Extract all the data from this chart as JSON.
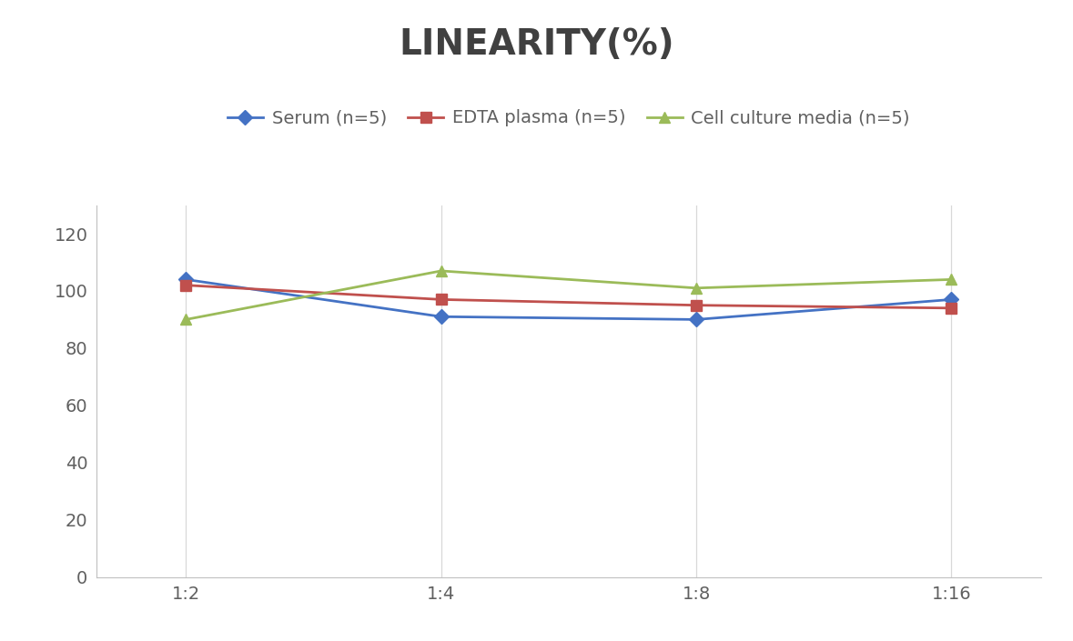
{
  "title": "LINEARITY(%)",
  "x_labels": [
    "1:2",
    "1:4",
    "1:8",
    "1:16"
  ],
  "series": [
    {
      "label": "Serum (n=5)",
      "values": [
        104,
        91,
        90,
        97
      ],
      "color": "#4472C4",
      "marker": "D",
      "linewidth": 2,
      "markersize": 8
    },
    {
      "label": "EDTA plasma (n=5)",
      "values": [
        102,
        97,
        95,
        94
      ],
      "color": "#C0504D",
      "marker": "s",
      "linewidth": 2,
      "markersize": 8
    },
    {
      "label": "Cell culture media (n=5)",
      "values": [
        90,
        107,
        101,
        104
      ],
      "color": "#9BBB59",
      "marker": "^",
      "linewidth": 2,
      "markersize": 9
    }
  ],
  "ylim": [
    0,
    130
  ],
  "yticks": [
    0,
    20,
    40,
    60,
    80,
    100,
    120
  ],
  "title_fontsize": 28,
  "title_fontweight": "bold",
  "title_color": "#404040",
  "legend_fontsize": 14,
  "tick_fontsize": 14,
  "tick_color": "#606060",
  "background_color": "#ffffff",
  "grid_color": "#d8d8d8",
  "spine_color": "#c0c0c0"
}
